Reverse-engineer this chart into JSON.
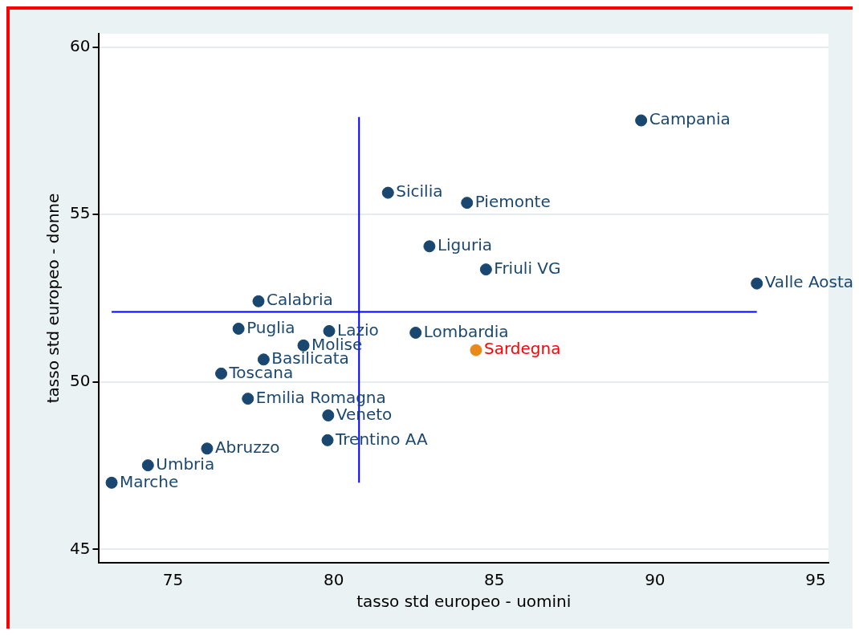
{
  "chart_data": {
    "type": "scatter",
    "xlabel": "tasso std europeo - uomini",
    "ylabel": "tasso std europeo - donne",
    "xlim": [
      72.7,
      95.4
    ],
    "xticks": [
      75,
      80,
      85,
      90,
      95
    ],
    "ylim": [
      44.6,
      60.4
    ],
    "yticks": [
      45,
      50,
      55,
      60
    ],
    "grid": "y",
    "legend": false,
    "marker": "circle",
    "series": [
      {
        "color": "#1a476f",
        "x": [
          89.57,
          81.69,
          84.15,
          82.98,
          84.74,
          93.17,
          77.66,
          77.04,
          79.86,
          82.55,
          79.06,
          77.82,
          76.5,
          77.33,
          79.83,
          79.81,
          76.06,
          74.22,
          73.09
        ],
        "values": [
          57.81,
          55.65,
          55.35,
          54.05,
          53.36,
          52.94,
          52.41,
          51.59,
          51.52,
          51.47,
          51.09,
          50.67,
          50.25,
          49.5,
          49.0,
          48.26,
          48.01,
          47.51,
          46.99
        ]
      },
      {
        "name": "Sardegna",
        "color": "#e8891c",
        "x": [
          84.43
        ],
        "values": [
          50.95
        ]
      },
      {
        "type": "line",
        "color": "#0000ff",
        "marker": "none",
        "x": [
          80.79,
          80.79
        ],
        "values": [
          46.99,
          57.91
        ]
      },
      {
        "type": "line",
        "color": "#0000ff",
        "marker": "none",
        "x": [
          73.09,
          93.17
        ],
        "values": [
          52.09,
          52.09
        ]
      }
    ],
    "annotations": [
      {
        "text": "Campania",
        "x": 89.57,
        "y": 57.81
      },
      {
        "text": "Sicilia",
        "x": 81.69,
        "y": 55.65
      },
      {
        "text": "Piemonte",
        "x": 84.15,
        "y": 55.35
      },
      {
        "text": "Liguria",
        "x": 82.98,
        "y": 54.05
      },
      {
        "text": "Friuli VG",
        "x": 84.74,
        "y": 53.36
      },
      {
        "text": "Valle Aosta",
        "x": 93.17,
        "y": 52.94
      },
      {
        "text": "Calabria",
        "x": 77.66,
        "y": 52.41
      },
      {
        "text": "Puglia",
        "x": 77.04,
        "y": 51.59
      },
      {
        "text": "Lazio",
        "x": 79.86,
        "y": 51.52
      },
      {
        "text": "Lombardia",
        "x": 82.55,
        "y": 51.47
      },
      {
        "text": "Molise",
        "x": 79.06,
        "y": 51.09
      },
      {
        "text": "Basilicata",
        "x": 77.82,
        "y": 50.67
      },
      {
        "text": "Toscana",
        "x": 76.5,
        "y": 50.25
      },
      {
        "text": "Emilia Romagna",
        "x": 77.33,
        "y": 49.5
      },
      {
        "text": "Veneto",
        "x": 79.83,
        "y": 49.0
      },
      {
        "text": "Trentino AA",
        "x": 79.81,
        "y": 48.26
      },
      {
        "text": "Abruzzo",
        "x": 76.06,
        "y": 48.01
      },
      {
        "text": "Umbria",
        "x": 74.22,
        "y": 47.51
      },
      {
        "text": "Marche",
        "x": 73.09,
        "y": 46.99
      }
    ]
  }
}
